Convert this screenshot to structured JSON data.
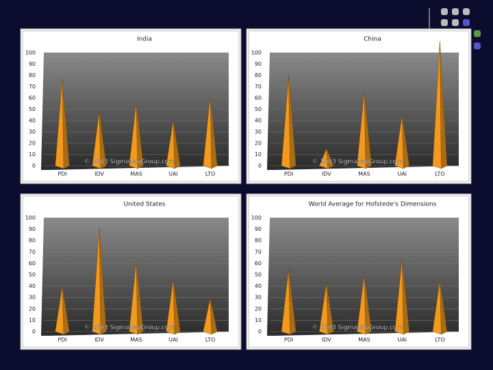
{
  "chart_data": [
    {
      "type": "pyramid",
      "title": "India",
      "watermark": "© 2003 SigmaTwoGroup.com",
      "categories": [
        "PDI",
        "IDV",
        "MAS",
        "UAI",
        "LTO"
      ],
      "values": [
        77,
        48,
        56,
        40,
        61
      ],
      "color": "#f39a1e",
      "ylim": [
        0,
        100
      ],
      "yticks": [
        0,
        10,
        20,
        30,
        40,
        50,
        60,
        70,
        80,
        90,
        100
      ],
      "grid": true
    },
    {
      "type": "pyramid",
      "title": "China",
      "watermark": "© 2003 SigmaTwoGroup.com",
      "categories": [
        "PDI",
        "IDV",
        "MAS",
        "UAI",
        "LTO"
      ],
      "values": [
        80,
        15,
        66,
        45,
        110
      ],
      "color": "#f39a1e",
      "ylim": [
        0,
        100
      ],
      "yticks": [
        0,
        10,
        20,
        30,
        40,
        50,
        60,
        70,
        80,
        90,
        100
      ],
      "grid": true
    },
    {
      "type": "pyramid",
      "title": "United States",
      "watermark": "© 2003 SigmaTwoGroup.com",
      "categories": [
        "PDI",
        "IDV",
        "MAS",
        "UAI",
        "LTO"
      ],
      "values": [
        40,
        91,
        62,
        46,
        29
      ],
      "color": "#f39a1e",
      "ylim": [
        0,
        100
      ],
      "yticks": [
        0,
        10,
        20,
        30,
        40,
        50,
        60,
        70,
        80,
        90,
        100
      ],
      "grid": true
    },
    {
      "type": "pyramid",
      "title": "World Average for Hofstede's Dimensions",
      "watermark": "© 2003 SigmaTwoGroup.com",
      "categories": [
        "PDI",
        "IDV",
        "MAS",
        "UAI",
        "LTO"
      ],
      "values": [
        55,
        43,
        50,
        64,
        45
      ],
      "color": "#f39a1e",
      "ylim": [
        0,
        100
      ],
      "yticks": [
        0,
        10,
        20,
        30,
        40,
        50,
        60,
        70,
        80,
        90,
        100
      ],
      "grid": true
    }
  ]
}
